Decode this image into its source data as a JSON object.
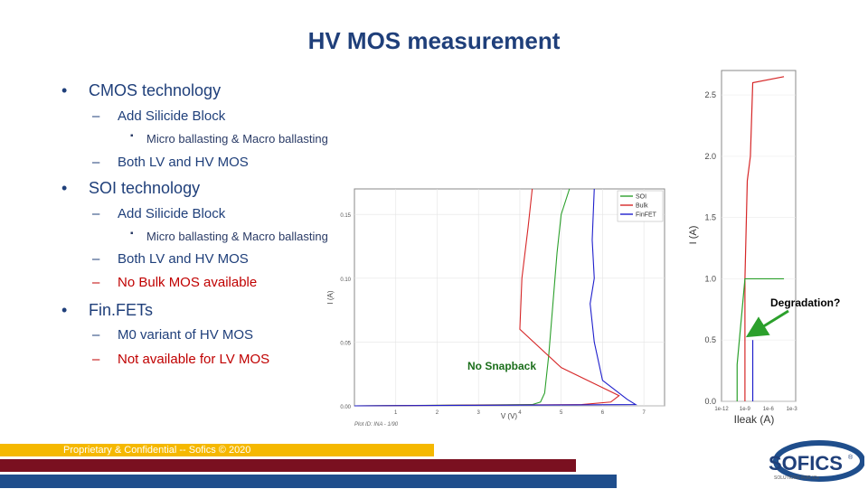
{
  "title": "HV MOS measurement",
  "bullets": [
    {
      "text": "CMOS technology",
      "dot": "•"
    },
    {
      "text": "Add Silicide Block",
      "dash": "–"
    },
    {
      "text": "Micro ballasting & Macro ballasting",
      "sq": "▪"
    },
    {
      "text": "Both LV and HV MOS",
      "dash": "–"
    },
    {
      "text": "SOI technology",
      "dot": "•"
    },
    {
      "text": "Add Silicide Block",
      "dash": "–"
    },
    {
      "text": "Micro ballasting & Macro ballasting",
      "sq": "▪"
    },
    {
      "text": "Both LV and HV MOS",
      "dash": "–"
    },
    {
      "text": "No Bulk MOS available",
      "dash": "–"
    },
    {
      "text": "Fin.FETs",
      "dot": "•"
    },
    {
      "text": "M0 variant of HV MOS",
      "dash": "–"
    },
    {
      "text": "Not available for LV MOS",
      "dash": "–"
    }
  ],
  "callouts": {
    "no_snapback": "No Snapback",
    "degradation": "Degradation?"
  },
  "footer": "Proprietary & Confidential -- Sofics © 2020",
  "logo": {
    "name": "SOFICS",
    "registered": "®",
    "tagline": "SOLUTIONS FOR ICs"
  },
  "colors": {
    "title": "#1f3f7a",
    "red_text": "#c00000",
    "soi": "#2ca02c",
    "bulk": "#d62728",
    "finfet": "#1f1fcc",
    "stripe_orange": "#f5b800",
    "stripe_maroon": "#7a1020",
    "stripe_blue": "#1f4e8c",
    "callout_green": "#1b6e1b"
  },
  "chart_data": [
    {
      "type": "line",
      "xlabel": "V (V)",
      "ylabel": "I (A)",
      "xlim": [
        0,
        7.5
      ],
      "ylim": [
        0,
        0.17
      ],
      "x_ticks": [
        "1",
        "2",
        "3",
        "4",
        "5",
        "6",
        "7"
      ],
      "y_ticks": [
        "0.00",
        "0.05",
        "0.10",
        "0.15"
      ],
      "legend": [
        "SOI",
        "Bulk",
        "FinFET"
      ],
      "legend_position": "top-right",
      "caption": "Plot ID: INA - 1/90",
      "series": [
        {
          "name": "SOI",
          "x": [
            0,
            4.3,
            4.5,
            4.6,
            4.7,
            4.8,
            4.9,
            5.0,
            5.2
          ],
          "y": [
            0,
            0.001,
            0.003,
            0.01,
            0.04,
            0.08,
            0.12,
            0.15,
            0.17
          ]
        },
        {
          "name": "Bulk",
          "x": [
            0,
            5.5,
            6.2,
            6.4,
            5.0,
            4.0,
            4.05,
            4.2,
            4.3
          ],
          "y": [
            0,
            0.001,
            0.003,
            0.008,
            0.03,
            0.06,
            0.1,
            0.14,
            0.17
          ]
        },
        {
          "name": "FinFET",
          "x": [
            0,
            6.8,
            6.6,
            6.0,
            5.8,
            5.7,
            5.8,
            5.75,
            5.8
          ],
          "y": [
            0,
            0.001,
            0.005,
            0.02,
            0.05,
            0.08,
            0.1,
            0.13,
            0.17
          ]
        }
      ]
    },
    {
      "type": "line",
      "xlabel": "Ileak (A)",
      "ylabel": "I (A)",
      "ylim": [
        0,
        2.7
      ],
      "y_ticks": [
        "0.0",
        "0.5",
        "1.0",
        "1.5",
        "2.0",
        "2.5"
      ],
      "x_ticks": [
        "1e-12",
        "1e-9",
        "1e-6",
        "1e-3"
      ],
      "series": [
        {
          "name": "",
          "x": [
            1e-09,
            1e-09,
            1e-09,
            2e-09,
            5e-09,
            1e-08,
            0.0001
          ],
          "y": [
            0.0,
            0.9,
            1.0,
            1.8,
            2.0,
            2.6,
            2.65
          ]
        },
        {
          "name": "",
          "x": [
            1e-10,
            1e-10,
            1e-09,
            0.0001
          ],
          "y": [
            0.0,
            0.3,
            1.0,
            1.0
          ]
        },
        {
          "name": "",
          "x": [
            1e-08,
            1e-08
          ],
          "y": [
            0.0,
            0.5
          ]
        }
      ]
    }
  ]
}
